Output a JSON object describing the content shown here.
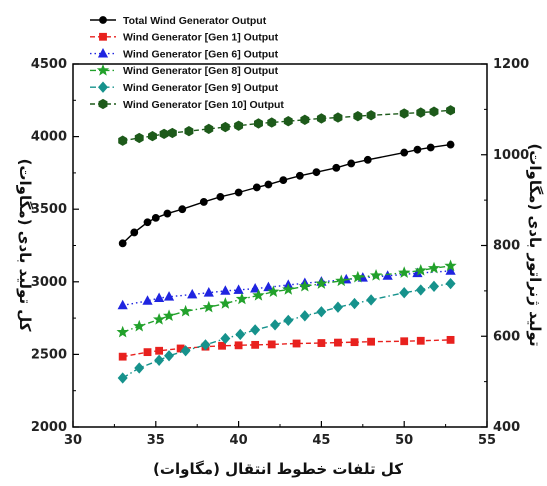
{
  "chart_data": {
    "type": "line",
    "xlabel": "کل تلفات خطوط انتقال (مگاوات)",
    "ylabel_left": "کل تولید بادی (مگاوات)",
    "ylabel_right": "تولید ژنراتور بادی (مگاوات)",
    "xlim": [
      30,
      55
    ],
    "ylim_left": [
      2000,
      4500
    ],
    "ylim_right": [
      400,
      1200
    ],
    "x_ticks": [
      "30",
      "35",
      "40",
      "45",
      "50",
      "55"
    ],
    "y_ticks_left": [
      "2000",
      "2500",
      "3000",
      "3500",
      "4000",
      "4500"
    ],
    "y_ticks_right": [
      "400",
      "600",
      "800",
      "1000",
      "1200"
    ],
    "legend_position": "top-left",
    "grid": false,
    "series": [
      {
        "name": "Total Wind Generator Output",
        "axis": "left",
        "color": "#000000",
        "marker": "circle",
        "line": "solid",
        "x": [
          33.0,
          33.7,
          34.5,
          35.0,
          35.7,
          36.6,
          37.9,
          38.9,
          40.0,
          41.1,
          41.8,
          42.7,
          43.7,
          44.7,
          45.9,
          46.8,
          47.8,
          50.0,
          50.8,
          51.6,
          52.8
        ],
        "y": [
          3265,
          3340,
          3410,
          3440,
          3470,
          3500,
          3550,
          3585,
          3615,
          3650,
          3670,
          3700,
          3730,
          3755,
          3785,
          3815,
          3840,
          3890,
          3910,
          3925,
          3945
        ]
      },
      {
        "name": "Wind Generator [Gen 1] Output",
        "axis": "right",
        "color": "#e8211e",
        "marker": "square",
        "line": "dashed",
        "x": [
          33.0,
          34.5,
          35.2,
          36.5,
          38.0,
          39.0,
          40.0,
          41.0,
          42.0,
          43.5,
          45.0,
          46.0,
          47.0,
          48.0,
          50.0,
          51.0,
          52.8
        ],
        "y": [
          555,
          565,
          568,
          573,
          577,
          579,
          580,
          581,
          582,
          584,
          585,
          586,
          587,
          588,
          589,
          590,
          592
        ]
      },
      {
        "name": "Wind Generator [Gen 6] Output",
        "axis": "right",
        "color": "#1f24e0",
        "marker": "triangle",
        "line": "dotted",
        "x": [
          33.0,
          34.5,
          35.2,
          35.8,
          37.2,
          38.2,
          39.2,
          40.0,
          41.0,
          41.8,
          43.0,
          44.0,
          45.0,
          46.5,
          47.5,
          49.0,
          50.8,
          52.8
        ],
        "y": [
          668,
          678,
          684,
          687,
          692,
          696,
          700,
          702,
          705,
          708,
          713,
          717,
          720,
          725,
          729,
          733,
          739,
          744
        ]
      },
      {
        "name": "Wind Generator [Gen 8] Output",
        "axis": "right",
        "color": "#22a12b",
        "marker": "star",
        "line": "dashdot",
        "x": [
          33.0,
          34.0,
          35.2,
          35.8,
          36.8,
          38.2,
          39.2,
          40.2,
          41.2,
          42.1,
          43.0,
          44.0,
          45.0,
          46.2,
          47.2,
          48.3,
          50.0,
          51.0,
          51.8,
          52.8
        ],
        "y": [
          609,
          622,
          637,
          645,
          655,
          664,
          672,
          682,
          690,
          698,
          703,
          710,
          716,
          722,
          730,
          734,
          740,
          745,
          750,
          755
        ]
      },
      {
        "name": "Wind Generator [Gen 9] Output",
        "axis": "right",
        "color": "#16928c",
        "marker": "diamond",
        "line": "dashdot",
        "x": [
          33.0,
          34.0,
          35.2,
          35.8,
          36.8,
          38.0,
          39.2,
          40.1,
          41.0,
          42.2,
          43.0,
          44.0,
          45.0,
          46.0,
          47.0,
          48.0,
          50.0,
          51.0,
          51.8,
          52.8
        ],
        "y": [
          508,
          530,
          547,
          557,
          568,
          581,
          595,
          604,
          614,
          625,
          635,
          645,
          654,
          664,
          672,
          680,
          696,
          702,
          710,
          716
        ]
      },
      {
        "name": "Wind Generator [Gen 10] Output",
        "axis": "right",
        "color": "#1d5a1a",
        "marker": "hexagon",
        "line": "dashed",
        "x": [
          33.0,
          34.0,
          34.8,
          35.5,
          36.0,
          37.0,
          38.2,
          39.2,
          40.0,
          41.2,
          42.0,
          43.0,
          44.0,
          45.0,
          46.0,
          47.2,
          48.0,
          50.0,
          51.0,
          51.8,
          52.8
        ],
        "y": [
          1031,
          1037,
          1041,
          1046,
          1048,
          1052,
          1057,
          1061,
          1064,
          1069,
          1071,
          1074,
          1077,
          1080,
          1082,
          1085,
          1087,
          1091,
          1093,
          1095,
          1098
        ]
      }
    ]
  }
}
